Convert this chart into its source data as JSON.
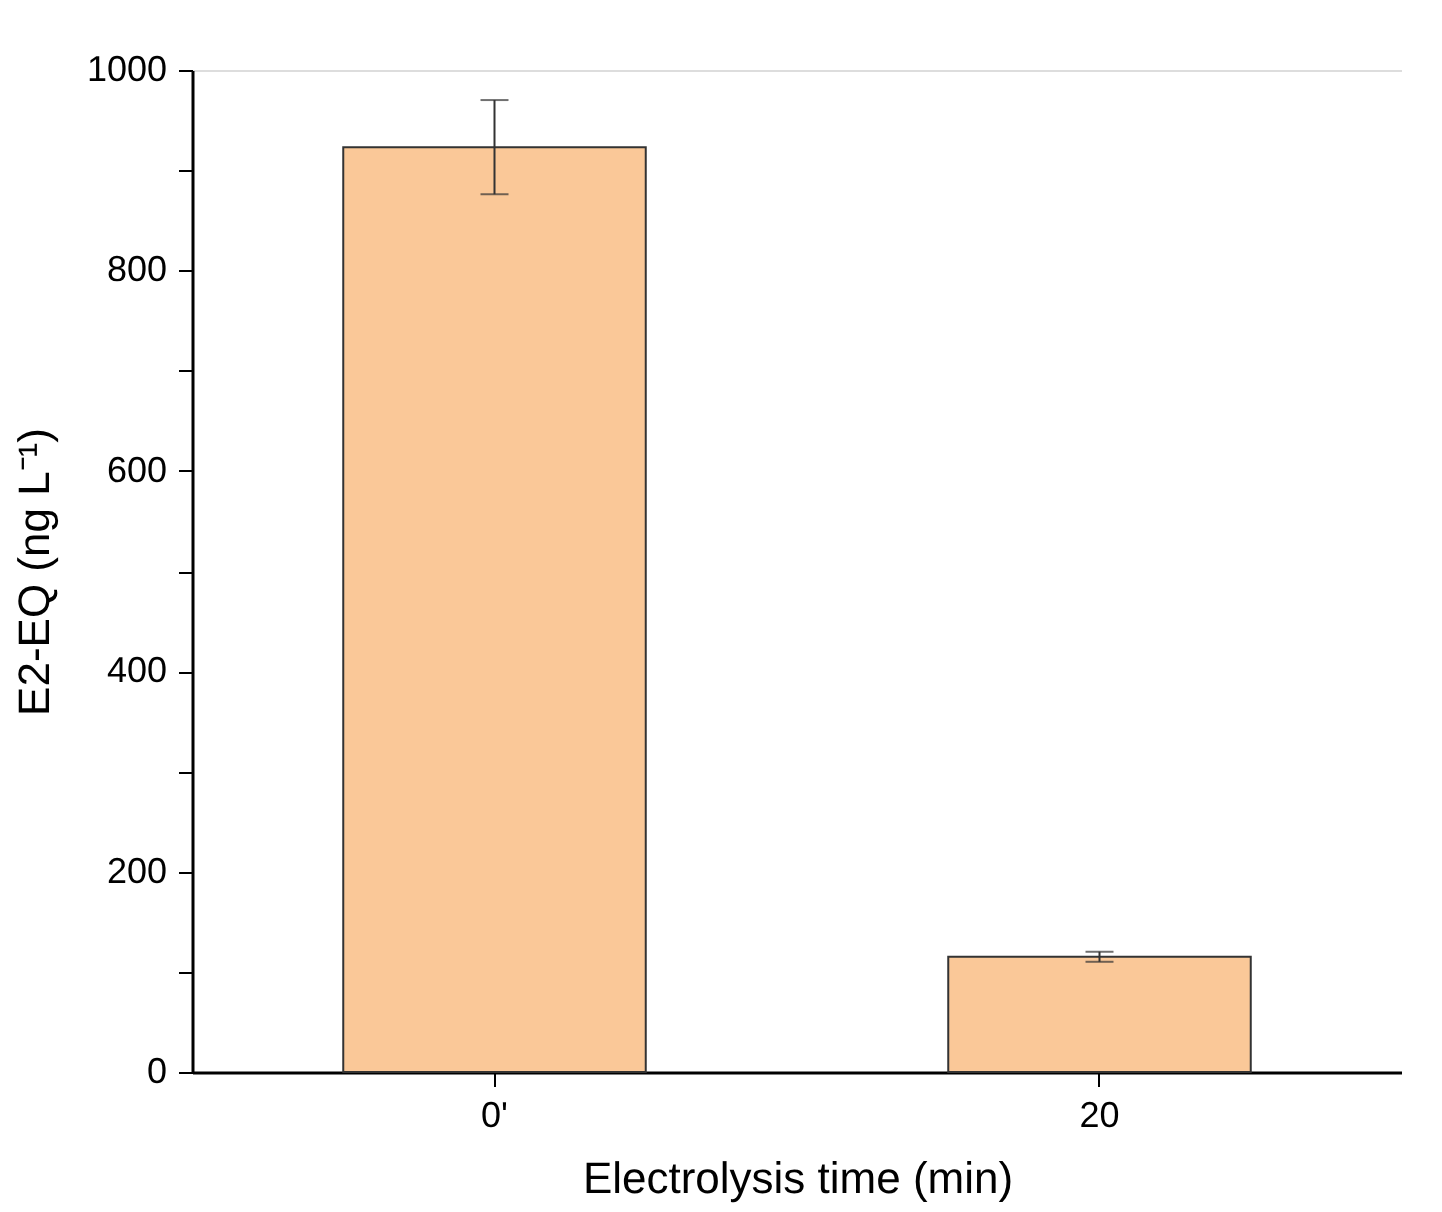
{
  "chart_data": {
    "type": "bar",
    "xlabel": "Electrolysis time (min)",
    "ylabel": "E2-EQ (ng L⁻¹)",
    "categories": [
      "0'",
      "20"
    ],
    "values": [
      923,
      115
    ],
    "errors": [
      47,
      5
    ],
    "color": "#fac898",
    "ylim": [
      0,
      1000
    ],
    "yticks": [
      0,
      {
        "value": 100,
        "label": null
      },
      200,
      {
        "value": 300,
        "label": null
      },
      400,
      {
        "value": 500,
        "label": null
      },
      600,
      {
        "value": 700,
        "label": null
      },
      800,
      {
        "value": 900,
        "label": null
      },
      1000
    ],
    "grid": false
  }
}
